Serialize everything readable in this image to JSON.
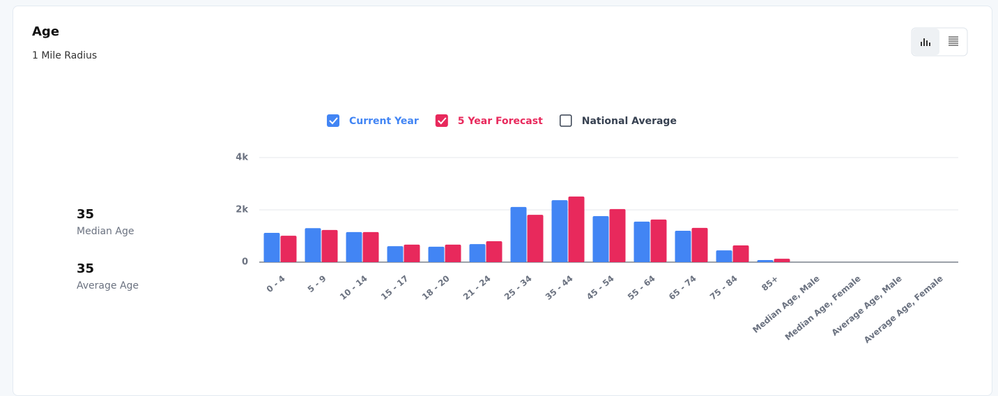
{
  "header": {
    "title": "Age",
    "subtitle": "1 Mile Radius"
  },
  "stats": [
    {
      "value": 35,
      "label": "Median Age"
    },
    {
      "value": 35,
      "label": "Average Age"
    }
  ],
  "chart_data": {
    "type": "bar",
    "categories": [
      "0 - 4",
      "5 - 9",
      "10 - 14",
      "15 - 17",
      "18 - 20",
      "21 - 24",
      "25 - 34",
      "35 - 44",
      "45 - 54",
      "55 - 64",
      "65 - 74",
      "75 - 84",
      "85+",
      "Median Age, Male",
      "Median Age, Female",
      "Average Age, Male",
      "Average Age, Female"
    ],
    "series": [
      {
        "name": "Current Year",
        "color": "#4285f4",
        "checked": true,
        "values": [
          1120,
          1300,
          1150,
          610,
          590,
          690,
          2110,
          2370,
          1760,
          1550,
          1200,
          450,
          80,
          null,
          null,
          null,
          null
        ]
      },
      {
        "name": "5 Year Forecast",
        "color": "#e8295c",
        "checked": true,
        "values": [
          1010,
          1230,
          1150,
          670,
          670,
          800,
          1810,
          2510,
          2030,
          1630,
          1310,
          640,
          130,
          null,
          null,
          null,
          null
        ]
      },
      {
        "name": "National Average",
        "color": "#374151",
        "checked": false,
        "values": [
          null,
          null,
          null,
          null,
          null,
          null,
          null,
          null,
          null,
          null,
          null,
          null,
          null,
          null,
          null,
          null,
          null
        ]
      }
    ],
    "ylim": [
      0,
      4000
    ],
    "yticks": [
      0,
      {
        "value": 2000,
        "label": "2k"
      },
      {
        "value": 4000,
        "label": "4k"
      }
    ],
    "grid": true
  }
}
